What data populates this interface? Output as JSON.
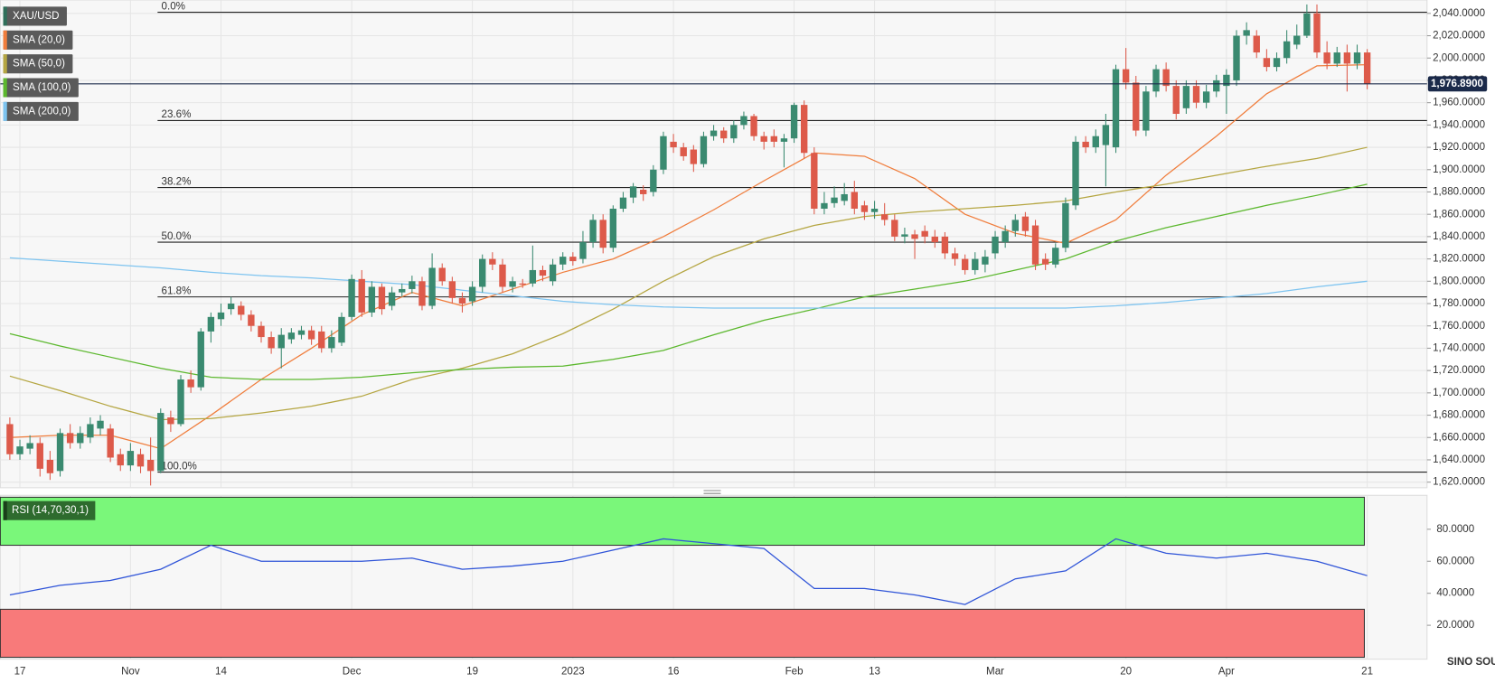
{
  "chart_data": [
    {
      "type": "candlestick",
      "name": "XAU/USD",
      "categories": [
        null,
        "17",
        null,
        null,
        null,
        null,
        null,
        null,
        null,
        null,
        null,
        null,
        "Nov",
        null,
        null,
        null,
        null,
        null,
        null,
        null,
        null,
        "14",
        null,
        null,
        null,
        null,
        null,
        null,
        null,
        null,
        null,
        null,
        null,
        null,
        "Dec",
        null,
        null,
        null,
        null,
        null,
        null,
        null,
        null,
        null,
        null,
        null,
        "19",
        null,
        null,
        null,
        null,
        null,
        null,
        null,
        null,
        null,
        "2023",
        null,
        null,
        null,
        null,
        null,
        null,
        null,
        null,
        null,
        "16",
        null,
        null,
        null,
        null,
        null,
        null,
        null,
        null,
        null,
        null,
        null,
        "Feb",
        null,
        null,
        null,
        null,
        null,
        null,
        null,
        "13",
        null,
        null,
        null,
        null,
        null,
        null,
        null,
        null,
        null,
        null,
        null,
        "Mar",
        null,
        null,
        null,
        null,
        null,
        null,
        null,
        null,
        null,
        null,
        null,
        null,
        "20",
        null,
        null,
        null,
        null,
        null,
        null,
        null,
        null,
        null,
        "Apr",
        null,
        null,
        null,
        null,
        null,
        null,
        null,
        null,
        null,
        null,
        null,
        null,
        null,
        "21"
      ],
      "open": [
        1672,
        1645,
        1650,
        1655,
        1640,
        1630,
        1664,
        1655,
        1660,
        1668,
        1668,
        1645,
        1635,
        1645,
        1640,
        1630,
        1678,
        1672,
        1712,
        1705,
        1755,
        1766,
        1775,
        1778,
        1770,
        1760,
        1750,
        1740,
        1748,
        1752,
        1756,
        1755,
        1740,
        1745,
        1768,
        1802,
        1772,
        1795,
        1778,
        1790,
        1793,
        1800,
        1778,
        1812,
        1800,
        1785,
        1782,
        1795,
        1820,
        1815,
        1795,
        1798,
        1798,
        1810,
        1800,
        1815,
        1822,
        1820,
        1835,
        1855,
        1830,
        1865,
        1875,
        1882,
        1880,
        1900,
        1925,
        1920,
        1918,
        1905,
        1930,
        1935,
        1928,
        1940,
        1948,
        1930,
        1930,
        1925,
        1928,
        1958,
        1915,
        1865,
        1870,
        1872,
        1880,
        1868,
        1862,
        1860,
        1855,
        1840,
        1842,
        1845,
        1840,
        1840,
        1825,
        1820,
        1810,
        1815,
        1825,
        1835,
        1845,
        1858,
        1850,
        1820,
        1815,
        1830,
        1868,
        1925,
        1920,
        1922,
        1920,
        1990,
        1978,
        1935,
        1970,
        1990,
        1975,
        1955,
        1975,
        1960,
        1970,
        1975,
        1980,
        2020,
        2020,
        2000,
        1992,
        2000,
        2012,
        2020,
        2040,
        2005,
        1995,
        2005,
        1995,
        2005
      ],
      "high": [
        1678,
        1658,
        1662,
        1660,
        1648,
        1668,
        1672,
        1670,
        1678,
        1680,
        1672,
        1650,
        1655,
        1650,
        1660,
        1686,
        1684,
        1716,
        1720,
        1758,
        1772,
        1780,
        1786,
        1782,
        1774,
        1764,
        1755,
        1758,
        1758,
        1760,
        1760,
        1760,
        1756,
        1772,
        1806,
        1810,
        1800,
        1798,
        1795,
        1798,
        1805,
        1804,
        1825,
        1816,
        1804,
        1790,
        1800,
        1824,
        1826,
        1820,
        1804,
        1802,
        1832,
        1814,
        1820,
        1826,
        1826,
        1845,
        1860,
        1860,
        1868,
        1880,
        1888,
        1886,
        1904,
        1934,
        1932,
        1924,
        1922,
        1934,
        1940,
        1938,
        1944,
        1952,
        1950,
        1934,
        1936,
        1932,
        1960,
        1962,
        1920,
        1880,
        1885,
        1888,
        1890,
        1872,
        1872,
        1870,
        1860,
        1848,
        1846,
        1850,
        1846,
        1844,
        1830,
        1824,
        1826,
        1828,
        1845,
        1850,
        1860,
        1862,
        1855,
        1825,
        1834,
        1875,
        1930,
        1930,
        1936,
        1950,
        1994,
        2009,
        1984,
        1975,
        1994,
        1996,
        1980,
        1980,
        1980,
        1976,
        1985,
        1990,
        2025,
        2032,
        2025,
        2008,
        2005,
        2025,
        2030,
        2048,
        2048,
        2015,
        2010,
        2012,
        2012,
        2008
      ],
      "low": [
        1640,
        1640,
        1645,
        1625,
        1622,
        1625,
        1650,
        1650,
        1655,
        1662,
        1638,
        1630,
        1630,
        1628,
        1617,
        1628,
        1665,
        1670,
        1700,
        1702,
        1745,
        1760,
        1770,
        1765,
        1755,
        1745,
        1735,
        1722,
        1744,
        1748,
        1743,
        1736,
        1736,
        1742,
        1765,
        1768,
        1768,
        1770,
        1774,
        1786,
        1789,
        1774,
        1775,
        1796,
        1780,
        1772,
        1778,
        1790,
        1810,
        1790,
        1790,
        1794,
        1795,
        1800,
        1796,
        1810,
        1814,
        1816,
        1830,
        1825,
        1826,
        1862,
        1870,
        1872,
        1876,
        1896,
        1915,
        1908,
        1898,
        1902,
        1926,
        1924,
        1924,
        1936,
        1926,
        1918,
        1920,
        1902,
        1924,
        1910,
        1860,
        1860,
        1866,
        1868,
        1860,
        1855,
        1856,
        1850,
        1836,
        1834,
        1820,
        1834,
        1830,
        1820,
        1814,
        1806,
        1806,
        1808,
        1820,
        1830,
        1840,
        1840,
        1810,
        1810,
        1812,
        1826,
        1864,
        1915,
        1915,
        1885,
        1915,
        1972,
        1930,
        1930,
        1965,
        1970,
        1945,
        1950,
        1955,
        1955,
        1965,
        1950,
        1975,
        2012,
        2000,
        1988,
        1988,
        1995,
        2008,
        2018,
        2000,
        1990,
        1992,
        1970,
        1990,
        1972
      ],
      "close": [
        1645,
        1652,
        1655,
        1632,
        1628,
        1664,
        1655,
        1664,
        1672,
        1675,
        1642,
        1635,
        1648,
        1634,
        1630,
        1682,
        1672,
        1712,
        1705,
        1755,
        1768,
        1772,
        1780,
        1770,
        1760,
        1750,
        1740,
        1752,
        1754,
        1756,
        1748,
        1740,
        1750,
        1768,
        1802,
        1772,
        1795,
        1775,
        1790,
        1793,
        1800,
        1778,
        1812,
        1800,
        1785,
        1780,
        1795,
        1820,
        1815,
        1795,
        1800,
        1797,
        1810,
        1805,
        1815,
        1822,
        1818,
        1835,
        1855,
        1830,
        1865,
        1875,
        1885,
        1878,
        1900,
        1930,
        1920,
        1912,
        1905,
        1930,
        1935,
        1928,
        1940,
        1948,
        1930,
        1925,
        1925,
        1928,
        1958,
        1915,
        1865,
        1870,
        1875,
        1878,
        1865,
        1862,
        1865,
        1855,
        1840,
        1842,
        1838,
        1840,
        1835,
        1825,
        1820,
        1810,
        1820,
        1822,
        1840,
        1845,
        1855,
        1845,
        1815,
        1815,
        1830,
        1870,
        1925,
        1920,
        1930,
        1940,
        1990,
        1978,
        1935,
        1970,
        1990,
        1975,
        1950,
        1975,
        1960,
        1970,
        1980,
        1985,
        2020,
        2025,
        2005,
        1992,
        2000,
        2015,
        2020,
        2040,
        2005,
        1995,
        2005,
        1995,
        2005,
        1977
      ],
      "up_color": "#3a8a70",
      "down_color": "#dd5a4a",
      "ylim": [
        1615,
        2052
      ],
      "yticks": [
        {
          "value": 1620,
          "label": "1,620.0000"
        },
        {
          "value": 1640,
          "label": "1,640.0000"
        },
        {
          "value": 1660,
          "label": "1,660.0000"
        },
        {
          "value": 1680,
          "label": "1,680.0000"
        },
        {
          "value": 1700,
          "label": "1,700.0000"
        },
        {
          "value": 1720,
          "label": "1,720.0000"
        },
        {
          "value": 1740,
          "label": "1,740.0000"
        },
        {
          "value": 1760,
          "label": "1,760.0000"
        },
        {
          "value": 1780,
          "label": "1,780.0000"
        },
        {
          "value": 1800,
          "label": "1,800.0000"
        },
        {
          "value": 1820,
          "label": "1,820.0000"
        },
        {
          "value": 1840,
          "label": "1,840.0000"
        },
        {
          "value": 1860,
          "label": "1,860.0000"
        },
        {
          "value": 1880,
          "label": "1,880.0000"
        },
        {
          "value": 1900,
          "label": "1,900.0000"
        },
        {
          "value": 1920,
          "label": "1,920.0000"
        },
        {
          "value": 1940,
          "label": "1,940.0000"
        },
        {
          "value": 1960,
          "label": "1,960.0000"
        },
        {
          "value": 1980,
          "label": "1,980.0000"
        },
        {
          "value": 2000,
          "label": "2,000.0000"
        },
        {
          "value": 2020,
          "label": "2,020.0000"
        },
        {
          "value": 2040,
          "label": "2,040.0000"
        }
      ],
      "grid": true,
      "series": [
        {
          "name": "SMA (20,0)",
          "color": "#f07d3c",
          "x": [
            0,
            5,
            10,
            15,
            20,
            25,
            30,
            35,
            40,
            45,
            50,
            55,
            60,
            65,
            70,
            75,
            80,
            85,
            90,
            95,
            100,
            105,
            110,
            115,
            120,
            125,
            130,
            135
          ],
          "values": [
            1660,
            1662,
            1662,
            1650,
            1680,
            1712,
            1740,
            1770,
            1790,
            1778,
            1793,
            1808,
            1820,
            1840,
            1864,
            1890,
            1915,
            1912,
            1892,
            1860,
            1843,
            1834,
            1855,
            1895,
            1930,
            1968,
            1993,
            1994
          ]
        },
        {
          "name": "SMA (50,0)",
          "color": "#b5a642",
          "x": [
            0,
            5,
            10,
            15,
            20,
            25,
            30,
            35,
            40,
            45,
            50,
            55,
            60,
            65,
            70,
            75,
            80,
            85,
            90,
            95,
            100,
            105,
            110,
            115,
            120,
            125,
            130,
            135
          ],
          "values": [
            1715,
            1702,
            1688,
            1676,
            1677,
            1682,
            1688,
            1697,
            1712,
            1722,
            1735,
            1753,
            1775,
            1800,
            1822,
            1838,
            1850,
            1858,
            1862,
            1865,
            1868,
            1872,
            1880,
            1887,
            1895,
            1903,
            1910,
            1920
          ]
        },
        {
          "name": "SMA (100,0)",
          "color": "#5cb82e",
          "x": [
            0,
            5,
            10,
            15,
            20,
            25,
            30,
            35,
            40,
            45,
            50,
            55,
            60,
            65,
            70,
            75,
            80,
            85,
            90,
            95,
            100,
            105,
            110,
            115,
            120,
            125,
            130,
            135
          ],
          "values": [
            1753,
            1742,
            1732,
            1722,
            1714,
            1712,
            1712,
            1714,
            1718,
            1721,
            1723,
            1724,
            1730,
            1738,
            1752,
            1765,
            1775,
            1786,
            1793,
            1800,
            1810,
            1820,
            1836,
            1848,
            1858,
            1868,
            1877,
            1887
          ]
        },
        {
          "name": "SMA (200,0)",
          "color": "#7ec4f0",
          "x": [
            0,
            5,
            10,
            15,
            20,
            25,
            30,
            35,
            40,
            45,
            50,
            55,
            60,
            65,
            70,
            75,
            80,
            85,
            90,
            95,
            100,
            105,
            110,
            115,
            120,
            125,
            130,
            135
          ],
          "values": [
            1821,
            1818,
            1815,
            1812,
            1808,
            1805,
            1803,
            1800,
            1797,
            1792,
            1787,
            1782,
            1779,
            1777,
            1776,
            1776,
            1776,
            1776,
            1776,
            1776,
            1776,
            1776,
            1778,
            1781,
            1785,
            1789,
            1795,
            1800
          ]
        }
      ],
      "fib_levels": [
        {
          "value": 2041,
          "label": "0.0%"
        },
        {
          "value": 1944,
          "label": "23.6%"
        },
        {
          "value": 1884,
          "label": "38.2%"
        },
        {
          "value": 1835,
          "label": "50.0%"
        },
        {
          "value": 1786,
          "label": "61.8%"
        },
        {
          "value": 1629,
          "label": "100.0%"
        }
      ],
      "last_price": {
        "value": 1976.89,
        "label": "1,976.8900"
      }
    },
    {
      "type": "line",
      "series": [
        {
          "name": "RSI (14,70,30,1)",
          "color": "#2f54d8",
          "x": [
            0,
            5,
            10,
            15,
            20,
            25,
            30,
            35,
            40,
            45,
            50,
            55,
            60,
            65,
            70,
            75,
            80,
            85,
            90,
            95,
            100,
            105,
            110,
            115,
            120,
            125,
            130,
            135
          ],
          "values": [
            39,
            45,
            48,
            55,
            70,
            60,
            60,
            60,
            62,
            55,
            57,
            60,
            67,
            74,
            71,
            68,
            43,
            43,
            39,
            33,
            49,
            54,
            74,
            65,
            62,
            65,
            60,
            51
          ]
        }
      ],
      "ylim": [
        0,
        100
      ],
      "yticks": [
        {
          "value": 20,
          "label": "20.0000"
        },
        {
          "value": 40,
          "label": "40.0000"
        },
        {
          "value": 60,
          "label": "60.0000"
        },
        {
          "value": 80,
          "label": "80.0000"
        }
      ],
      "overbought": 70,
      "oversold": 30,
      "overbought_color": "#7af77a",
      "oversold_color": "#f87a7a"
    }
  ],
  "watermark": "SINO SOUND"
}
